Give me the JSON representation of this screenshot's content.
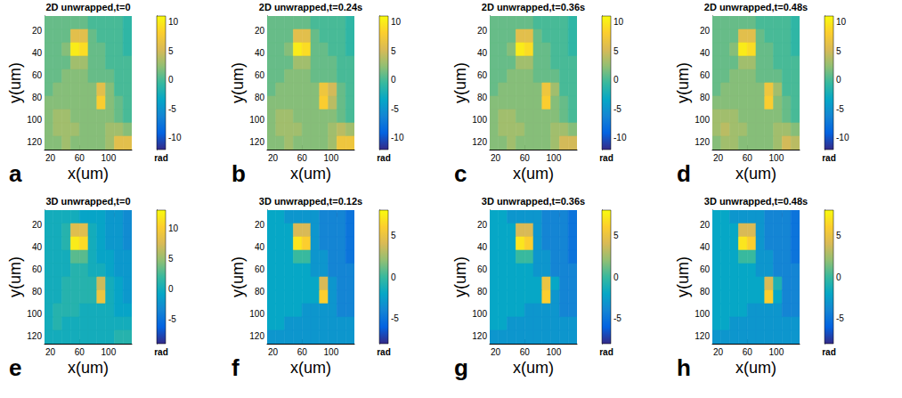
{
  "chart_data": [
    {
      "type": "heatmap",
      "title": "2D unwrapped,t=0",
      "panel_label": "a",
      "xlabel": "x(um)",
      "ylabel": "y(um)",
      "x": [
        18,
        30,
        42,
        54,
        66,
        78,
        90,
        102,
        114,
        126
      ],
      "y": [
        13,
        25,
        37,
        49,
        61,
        73,
        85,
        97,
        109,
        121
      ],
      "values": [
        [
          1,
          1,
          1,
          1,
          1,
          0,
          0,
          0,
          0,
          -1
        ],
        [
          1,
          1,
          1,
          6,
          6,
          1,
          0,
          0,
          0,
          -1
        ],
        [
          1,
          1,
          2,
          10,
          9,
          1,
          1,
          0,
          0,
          -1
        ],
        [
          1,
          1,
          1,
          3,
          3,
          1,
          1,
          0,
          0,
          0
        ],
        [
          1,
          1,
          2,
          2,
          2,
          1,
          1,
          1,
          0,
          0
        ],
        [
          1,
          2,
          2,
          2,
          2,
          2,
          6,
          2,
          0,
          0
        ],
        [
          2,
          2,
          2,
          2,
          2,
          2,
          8,
          2,
          1,
          0
        ],
        [
          2,
          3,
          3,
          2,
          2,
          2,
          2,
          2,
          1,
          0
        ],
        [
          2,
          3,
          3,
          3,
          2,
          2,
          2,
          3,
          3,
          2
        ],
        [
          2,
          2,
          3,
          2,
          2,
          2,
          2,
          3,
          6,
          6
        ]
      ],
      "xlim": [
        12,
        132
      ],
      "ylim": [
        7,
        127
      ],
      "xticks": [
        20,
        60,
        100
      ],
      "yticks": [
        20,
        40,
        60,
        80,
        100,
        120
      ],
      "grid": false,
      "colorbar_range": [
        -12,
        11
      ],
      "colorbar_ticks": [
        -10,
        -5,
        0,
        5,
        10
      ],
      "colorbar_label": "rad"
    },
    {
      "type": "heatmap",
      "title": "2D unwrapped,t=0.24s",
      "panel_label": "b",
      "xlabel": "x(um)",
      "ylabel": "y(um)",
      "x": [
        18,
        30,
        42,
        54,
        66,
        78,
        90,
        102,
        114,
        126
      ],
      "y": [
        13,
        25,
        37,
        49,
        61,
        73,
        85,
        97,
        109,
        121
      ],
      "values": [
        [
          1,
          1,
          1,
          1,
          1,
          0,
          0,
          0,
          0,
          -1
        ],
        [
          1,
          1,
          1,
          6,
          6,
          1,
          0,
          0,
          0,
          -1
        ],
        [
          1,
          1,
          2,
          10,
          9,
          1,
          1,
          0,
          0,
          -1
        ],
        [
          1,
          1,
          1,
          3,
          3,
          1,
          1,
          1,
          0,
          0
        ],
        [
          1,
          1,
          2,
          2,
          2,
          1,
          1,
          1,
          0,
          0
        ],
        [
          1,
          2,
          2,
          2,
          2,
          2,
          7,
          5,
          1,
          0
        ],
        [
          2,
          2,
          2,
          2,
          2,
          2,
          8,
          4,
          1,
          0
        ],
        [
          2,
          3,
          3,
          2,
          2,
          2,
          2,
          2,
          1,
          0
        ],
        [
          2,
          3,
          3,
          3,
          2,
          2,
          2,
          3,
          4,
          3
        ],
        [
          2,
          2,
          3,
          2,
          2,
          2,
          2,
          3,
          7,
          7
        ]
      ],
      "xlim": [
        12,
        132
      ],
      "ylim": [
        7,
        127
      ],
      "xticks": [
        20,
        60,
        100
      ],
      "yticks": [
        20,
        40,
        60,
        80,
        100,
        120
      ],
      "grid": false,
      "colorbar_range": [
        -12,
        11
      ],
      "colorbar_ticks": [
        -10,
        -5,
        0,
        5,
        10
      ],
      "colorbar_label": "rad"
    },
    {
      "type": "heatmap",
      "title": "2D unwrapped,t=0.36s",
      "panel_label": "c",
      "xlabel": "x(um)",
      "ylabel": "y(um)",
      "x": [
        18,
        30,
        42,
        54,
        66,
        78,
        90,
        102,
        114,
        126
      ],
      "y": [
        13,
        25,
        37,
        49,
        61,
        73,
        85,
        97,
        109,
        121
      ],
      "values": [
        [
          1,
          1,
          1,
          1,
          1,
          0,
          0,
          0,
          0,
          -1
        ],
        [
          1,
          1,
          1,
          6,
          6,
          1,
          0,
          0,
          0,
          -1
        ],
        [
          1,
          1,
          2,
          10,
          9,
          1,
          1,
          0,
          0,
          -1
        ],
        [
          1,
          1,
          1,
          3,
          3,
          1,
          1,
          0,
          0,
          0
        ],
        [
          1,
          1,
          2,
          2,
          2,
          1,
          1,
          1,
          0,
          0
        ],
        [
          1,
          2,
          2,
          2,
          2,
          2,
          7,
          3,
          0,
          0
        ],
        [
          2,
          2,
          2,
          2,
          2,
          2,
          8,
          2,
          1,
          0
        ],
        [
          2,
          3,
          3,
          2,
          2,
          2,
          2,
          2,
          1,
          0
        ],
        [
          2,
          3,
          3,
          3,
          2,
          2,
          2,
          3,
          3,
          2
        ],
        [
          2,
          2,
          3,
          2,
          2,
          2,
          2,
          3,
          5,
          5
        ]
      ],
      "xlim": [
        12,
        132
      ],
      "ylim": [
        7,
        127
      ],
      "xticks": [
        20,
        60,
        100
      ],
      "yticks": [
        20,
        40,
        60,
        80,
        100,
        120
      ],
      "grid": false,
      "colorbar_range": [
        -12,
        11
      ],
      "colorbar_ticks": [
        -10,
        -5,
        0,
        5,
        10
      ],
      "colorbar_label": "rad"
    },
    {
      "type": "heatmap",
      "title": "2D unwrapped,t=0.48s",
      "panel_label": "d",
      "xlabel": "x(um)",
      "ylabel": "y(um)",
      "x": [
        18,
        30,
        42,
        54,
        66,
        78,
        90,
        102,
        114,
        126
      ],
      "y": [
        13,
        25,
        37,
        49,
        61,
        73,
        85,
        97,
        109,
        121
      ],
      "values": [
        [
          1,
          1,
          1,
          1,
          1,
          0,
          0,
          0,
          0,
          -1
        ],
        [
          1,
          1,
          1,
          6,
          6,
          1,
          0,
          0,
          0,
          -1
        ],
        [
          1,
          1,
          2,
          10,
          9,
          1,
          1,
          0,
          0,
          -1
        ],
        [
          1,
          1,
          1,
          3,
          3,
          1,
          1,
          0,
          0,
          0
        ],
        [
          1,
          1,
          2,
          2,
          2,
          1,
          1,
          1,
          0,
          0
        ],
        [
          1,
          2,
          2,
          2,
          2,
          2,
          7,
          3,
          0,
          0
        ],
        [
          2,
          2,
          2,
          2,
          2,
          2,
          8,
          2,
          1,
          0
        ],
        [
          3,
          3,
          3,
          2,
          2,
          2,
          2,
          2,
          1,
          0
        ],
        [
          3,
          4,
          3,
          3,
          2,
          2,
          2,
          3,
          3,
          2
        ],
        [
          2,
          3,
          3,
          2,
          2,
          2,
          2,
          3,
          5,
          4
        ]
      ],
      "xlim": [
        12,
        132
      ],
      "ylim": [
        7,
        127
      ],
      "xticks": [
        20,
        60,
        100
      ],
      "yticks": [
        20,
        40,
        60,
        80,
        100,
        120
      ],
      "grid": false,
      "colorbar_range": [
        -12,
        11
      ],
      "colorbar_ticks": [
        -10,
        -5,
        0,
        5,
        10
      ],
      "colorbar_label": "rad"
    },
    {
      "type": "heatmap",
      "title": "3D unwrapped,t=0",
      "panel_label": "e",
      "xlabel": "x(um)",
      "ylabel": "y(um)",
      "x": [
        18,
        30,
        42,
        54,
        66,
        78,
        90,
        102,
        114,
        126
      ],
      "y": [
        13,
        25,
        37,
        49,
        61,
        73,
        85,
        97,
        109,
        121
      ],
      "values": [
        [
          0,
          0,
          0,
          0,
          -1,
          -1,
          -1,
          -2,
          -2,
          -3
        ],
        [
          0,
          0,
          1,
          8,
          8,
          0,
          -1,
          -2,
          -2,
          -3
        ],
        [
          0,
          0,
          1,
          12,
          11,
          0,
          -1,
          -2,
          -2,
          -3
        ],
        [
          0,
          0,
          0,
          3,
          3,
          0,
          -1,
          -1,
          -2,
          -2
        ],
        [
          0,
          0,
          0,
          1,
          1,
          0,
          0,
          -1,
          -2,
          -2
        ],
        [
          0,
          0,
          1,
          1,
          1,
          1,
          7,
          0,
          -1,
          -2
        ],
        [
          0,
          0,
          1,
          1,
          1,
          1,
          9,
          0,
          -1,
          -2
        ],
        [
          0,
          1,
          1,
          1,
          0,
          0,
          0,
          0,
          -1,
          -1
        ],
        [
          0,
          1,
          0,
          0,
          0,
          0,
          0,
          0,
          0,
          0
        ],
        [
          0,
          0,
          0,
          0,
          0,
          0,
          0,
          0,
          1,
          1
        ]
      ],
      "xlim": [
        12,
        132
      ],
      "ylim": [
        7,
        127
      ],
      "xticks": [
        20,
        60,
        100
      ],
      "yticks": [
        20,
        40,
        60,
        80,
        100,
        120
      ],
      "grid": false,
      "colorbar_range": [
        -9,
        13
      ],
      "colorbar_ticks": [
        -5,
        0,
        5,
        10
      ],
      "colorbar_label": "rad"
    },
    {
      "type": "heatmap",
      "title": "3D unwrapped,t=0.12s",
      "panel_label": "f",
      "xlabel": "x(um)",
      "ylabel": "y(um)",
      "x": [
        18,
        30,
        42,
        54,
        66,
        78,
        90,
        102,
        114,
        126
      ],
      "y": [
        13,
        25,
        37,
        49,
        61,
        73,
        85,
        97,
        109,
        121
      ],
      "values": [
        [
          -2,
          -2,
          -3,
          -3,
          -3,
          -3,
          -4,
          -4,
          -4,
          -5
        ],
        [
          -2,
          -2,
          -2,
          4,
          4,
          -3,
          -4,
          -4,
          -4,
          -5
        ],
        [
          -2,
          -2,
          -2,
          7,
          6,
          -3,
          -4,
          -4,
          -4,
          -5
        ],
        [
          -2,
          -2,
          -2,
          0,
          0,
          -3,
          -3,
          -4,
          -4,
          -5
        ],
        [
          -2,
          -2,
          -2,
          -2,
          -2,
          -3,
          -3,
          -4,
          -4,
          -4
        ],
        [
          -2,
          -2,
          -2,
          -2,
          -2,
          -2,
          4,
          -3,
          -4,
          -4
        ],
        [
          -2,
          -2,
          -2,
          -2,
          -2,
          -2,
          6,
          -3,
          -4,
          -4
        ],
        [
          -2,
          -2,
          -2,
          -2,
          -3,
          -3,
          -3,
          -3,
          -4,
          -4
        ],
        [
          -2,
          -2,
          -3,
          -3,
          -3,
          -3,
          -3,
          -3,
          -3,
          -3
        ],
        [
          -3,
          -3,
          -3,
          -3,
          -3,
          -3,
          -3,
          -3,
          -3,
          -3
        ]
      ],
      "xlim": [
        12,
        132
      ],
      "ylim": [
        7,
        127
      ],
      "xticks": [
        20,
        60,
        100
      ],
      "yticks": [
        20,
        40,
        60,
        80,
        100,
        120
      ],
      "grid": false,
      "colorbar_range": [
        -8,
        8
      ],
      "colorbar_ticks": [
        -5,
        0,
        5
      ],
      "colorbar_label": "rad"
    },
    {
      "type": "heatmap",
      "title": "3D unwrapped,t=0.36s",
      "panel_label": "g",
      "xlabel": "x(um)",
      "ylabel": "y(um)",
      "x": [
        18,
        30,
        42,
        54,
        66,
        78,
        90,
        102,
        114,
        126
      ],
      "y": [
        13,
        25,
        37,
        49,
        61,
        73,
        85,
        97,
        109,
        121
      ],
      "values": [
        [
          -2,
          -2,
          -3,
          -3,
          -3,
          -3,
          -4,
          -4,
          -4,
          -5
        ],
        [
          -2,
          -2,
          -2,
          4,
          4,
          -3,
          -4,
          -4,
          -4,
          -5
        ],
        [
          -2,
          -2,
          -2,
          7,
          6,
          -3,
          -4,
          -4,
          -4,
          -5
        ],
        [
          -2,
          -2,
          -2,
          0,
          0,
          -3,
          -3,
          -4,
          -4,
          -5
        ],
        [
          -2,
          -2,
          -2,
          -2,
          -2,
          -3,
          -3,
          -4,
          -4,
          -4
        ],
        [
          -2,
          -2,
          -2,
          -2,
          -2,
          -2,
          5,
          -2,
          -4,
          -4
        ],
        [
          -2,
          -2,
          -2,
          -2,
          -2,
          -2,
          6,
          -3,
          -4,
          -4
        ],
        [
          -2,
          -2,
          -2,
          -2,
          -3,
          -3,
          -3,
          -3,
          -4,
          -4
        ],
        [
          -2,
          -2,
          -3,
          -3,
          -3,
          -3,
          -3,
          -3,
          -3,
          -3
        ],
        [
          -3,
          -3,
          -3,
          -3,
          -3,
          -3,
          -3,
          -3,
          -3,
          -3
        ]
      ],
      "xlim": [
        12,
        132
      ],
      "ylim": [
        7,
        127
      ],
      "xticks": [
        20,
        60,
        100
      ],
      "yticks": [
        20,
        40,
        60,
        80,
        100,
        120
      ],
      "grid": false,
      "colorbar_range": [
        -8,
        8
      ],
      "colorbar_ticks": [
        -5,
        0,
        5
      ],
      "colorbar_label": "rad"
    },
    {
      "type": "heatmap",
      "title": "3D unwrapped,t=0.48s",
      "panel_label": "h",
      "xlabel": "x(um)",
      "ylabel": "y(um)",
      "x": [
        18,
        30,
        42,
        54,
        66,
        78,
        90,
        102,
        114,
        126
      ],
      "y": [
        13,
        25,
        37,
        49,
        61,
        73,
        85,
        97,
        109,
        121
      ],
      "values": [
        [
          -2,
          -2,
          -3,
          -3,
          -3,
          -3,
          -4,
          -4,
          -4,
          -5
        ],
        [
          -2,
          -2,
          -2,
          4,
          4,
          -3,
          -4,
          -4,
          -4,
          -5
        ],
        [
          -2,
          -2,
          -2,
          7,
          6,
          -3,
          -4,
          -4,
          -4,
          -5
        ],
        [
          -2,
          -2,
          -2,
          0,
          0,
          -3,
          -3,
          -4,
          -4,
          -5
        ],
        [
          -2,
          -2,
          -2,
          -2,
          -2,
          -3,
          -3,
          -4,
          -4,
          -4
        ],
        [
          -2,
          -2,
          -2,
          -2,
          -2,
          -2,
          4,
          -1,
          -4,
          -4
        ],
        [
          -2,
          -2,
          -2,
          -2,
          -2,
          -2,
          6,
          -2,
          -4,
          -4
        ],
        [
          -2,
          -2,
          -2,
          -2,
          -3,
          -3,
          -3,
          -3,
          -4,
          -4
        ],
        [
          -2,
          -2,
          -3,
          -3,
          -3,
          -3,
          -3,
          -3,
          -3,
          -3
        ],
        [
          -3,
          -3,
          -3,
          -3,
          -3,
          -3,
          -3,
          -3,
          -3,
          -3
        ]
      ],
      "xlim": [
        12,
        132
      ],
      "ylim": [
        7,
        127
      ],
      "xticks": [
        20,
        60,
        100
      ],
      "yticks": [
        20,
        40,
        60,
        80,
        100,
        120
      ],
      "grid": false,
      "colorbar_range": [
        -8,
        8
      ],
      "colorbar_ticks": [
        -5,
        0,
        5
      ],
      "colorbar_label": "rad"
    }
  ]
}
